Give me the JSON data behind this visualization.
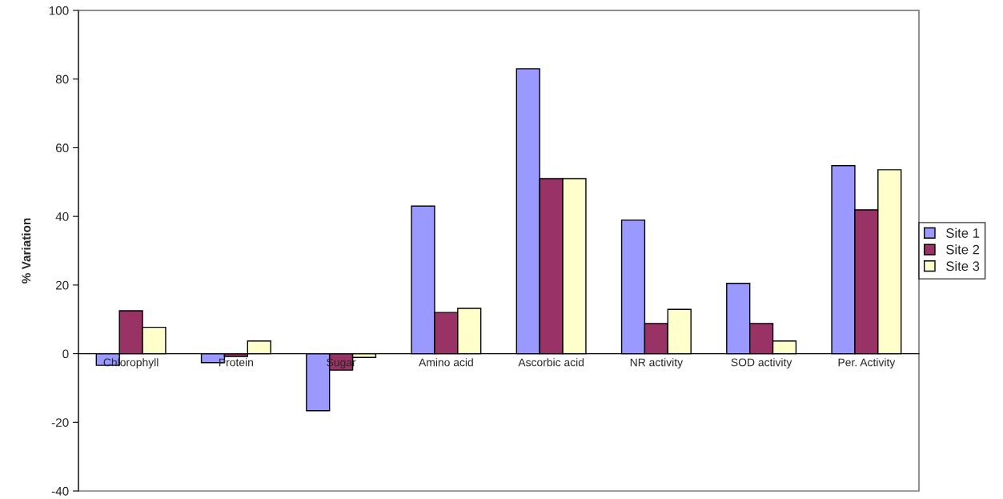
{
  "chart_data": {
    "type": "bar",
    "ylabel": "% Variation",
    "categories": [
      "Chlorophyll",
      "Protein",
      "Sugar",
      "Amino acid",
      "Ascorbic acid",
      "NR activity",
      "SOD activity",
      "Per. Activity"
    ],
    "series": [
      {
        "name": "Site 1",
        "color": "#9999ff",
        "values": [
          -3.4,
          -2.6,
          -16.6,
          43,
          83,
          38.9,
          20.5,
          54.8
        ]
      },
      {
        "name": "Site 2",
        "color": "#993366",
        "values": [
          12.5,
          -0.8,
          -4.8,
          12,
          51,
          8.8,
          8.8,
          41.9
        ]
      },
      {
        "name": "Site 3",
        "color": "#ffffcc",
        "values": [
          7.7,
          3.7,
          -1.1,
          13.2,
          51,
          12.9,
          3.7,
          53.6
        ]
      }
    ],
    "ylim": [
      -40,
      100
    ],
    "yticks": [
      -40,
      -20,
      0,
      20,
      40,
      60,
      80,
      100
    ],
    "grid": false,
    "legend": "right"
  }
}
